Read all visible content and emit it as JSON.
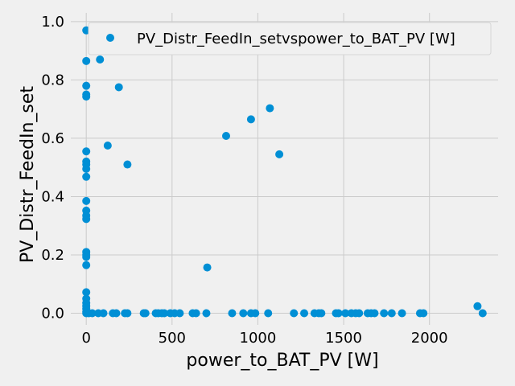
{
  "chart_data": {
    "type": "scatter",
    "title": "",
    "xlabel": "power_to_BAT_PV [W]",
    "ylabel": "PV_Distr_FeedIn_set",
    "xlim": [
      -90,
      2400
    ],
    "ylim": [
      -0.04,
      1.03
    ],
    "xticks": [
      0,
      500,
      1000,
      1500,
      2000
    ],
    "yticks": [
      0.0,
      0.2,
      0.4,
      0.6,
      0.8,
      1.0
    ],
    "xtick_labels": [
      "0",
      "500",
      "1000",
      "1500",
      "2000"
    ],
    "ytick_labels": [
      "0.0",
      "0.2",
      "0.4",
      "0.6",
      "0.8",
      "1.0"
    ],
    "grid": true,
    "legend_position": "top-right",
    "series": [
      {
        "name": "PV_Distr_FeedIn_setvspower_to_BAT_PV [W]",
        "color": "#008fd5",
        "points": [
          [
            0,
            0.97
          ],
          [
            0,
            0.865
          ],
          [
            0,
            0.78
          ],
          [
            0,
            0.75
          ],
          [
            0,
            0.743
          ],
          [
            0,
            0.555
          ],
          [
            0,
            0.52
          ],
          [
            0,
            0.51
          ],
          [
            0,
            0.495
          ],
          [
            0,
            0.468
          ],
          [
            0,
            0.385
          ],
          [
            0,
            0.352
          ],
          [
            0,
            0.335
          ],
          [
            0,
            0.323
          ],
          [
            0,
            0.21
          ],
          [
            0,
            0.2
          ],
          [
            0,
            0.193
          ],
          [
            0,
            0.165
          ],
          [
            0,
            0.072
          ],
          [
            0,
            0.05
          ],
          [
            0,
            0.035
          ],
          [
            0,
            0.025
          ],
          [
            0,
            0.015
          ],
          [
            0,
            0.005
          ],
          [
            0,
            0.0
          ],
          [
            80,
            0.87
          ],
          [
            190,
            0.775
          ],
          [
            125,
            0.575
          ],
          [
            240,
            0.51
          ],
          [
            815,
            0.608
          ],
          [
            960,
            0.665
          ],
          [
            1070,
            0.703
          ],
          [
            1125,
            0.545
          ],
          [
            705,
            0.157
          ],
          [
            2280,
            0.024
          ],
          [
            15,
            0.0
          ],
          [
            35,
            0.0
          ],
          [
            70,
            0.0
          ],
          [
            100,
            0.0
          ],
          [
            155,
            0.0
          ],
          [
            175,
            0.0
          ],
          [
            225,
            0.0
          ],
          [
            240,
            0.0
          ],
          [
            335,
            0.0
          ],
          [
            345,
            0.0
          ],
          [
            405,
            0.0
          ],
          [
            420,
            0.0
          ],
          [
            440,
            0.0
          ],
          [
            455,
            0.0
          ],
          [
            490,
            0.0
          ],
          [
            515,
            0.0
          ],
          [
            545,
            0.0
          ],
          [
            620,
            0.0
          ],
          [
            640,
            0.0
          ],
          [
            700,
            0.0
          ],
          [
            850,
            0.0
          ],
          [
            915,
            0.0
          ],
          [
            960,
            0.0
          ],
          [
            985,
            0.0
          ],
          [
            1060,
            0.0
          ],
          [
            1210,
            0.0
          ],
          [
            1270,
            0.0
          ],
          [
            1330,
            0.0
          ],
          [
            1355,
            0.0
          ],
          [
            1370,
            0.0
          ],
          [
            1455,
            0.0
          ],
          [
            1470,
            0.0
          ],
          [
            1510,
            0.0
          ],
          [
            1545,
            0.0
          ],
          [
            1570,
            0.0
          ],
          [
            1590,
            0.0
          ],
          [
            1640,
            0.0
          ],
          [
            1660,
            0.0
          ],
          [
            1680,
            0.0
          ],
          [
            1735,
            0.0
          ],
          [
            1780,
            0.0
          ],
          [
            1840,
            0.0
          ],
          [
            1945,
            0.0
          ],
          [
            1965,
            0.0
          ],
          [
            2310,
            0.0
          ]
        ]
      }
    ]
  }
}
